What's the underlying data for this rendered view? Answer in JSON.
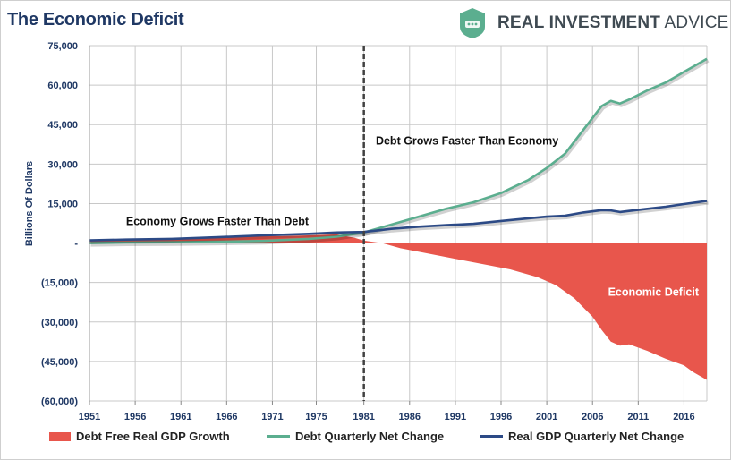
{
  "header": {
    "title": "The Economic Deficit",
    "brand_bold": "REAL INVESTMENT",
    "brand_light": "ADVICE"
  },
  "colors": {
    "title": "#1f3864",
    "axis_text": "#1f3864",
    "deficit_fill": "#e8564c",
    "debt_line": "#5bae8f",
    "gdp_line": "#2c4a86",
    "grid": "#c8c8c8",
    "divider": "#404040",
    "logo": "#5bae8f"
  },
  "chart_data": {
    "type": "line",
    "title": "The Economic Deficit",
    "xlabel": "",
    "ylabel": "Billions Of Dollars",
    "xlim": [
      1951,
      2018.5
    ],
    "ylim": [
      -60000,
      75000
    ],
    "x_ticks": [
      "1951",
      "1956",
      "1961",
      "1966",
      "1971",
      "1975",
      "1981",
      "1986",
      "1991",
      "1996",
      "2001",
      "2006",
      "2011",
      "2016"
    ],
    "x_tick_values": [
      1951,
      1956,
      1961,
      1966,
      1971,
      1975.8,
      1981,
      1986,
      1991,
      1996,
      2001,
      2006,
      2011,
      2016
    ],
    "y_ticks": [
      "75,000",
      "60,000",
      "45,000",
      "30,000",
      "15,000",
      "-",
      "(15,000)",
      "(30,000)",
      "(45,000)",
      "(60,000)"
    ],
    "y_tick_values": [
      75000,
      60000,
      45000,
      30000,
      15000,
      0,
      -15000,
      -30000,
      -45000,
      -60000
    ],
    "grid": true,
    "legend_position": "bottom",
    "divider_x": 1981,
    "annotations": [
      {
        "text": "Economy Grows Faster Than Debt",
        "x": 1955,
        "y": 6800
      },
      {
        "text": "Debt Grows Faster Than Economy",
        "x": 1982.3,
        "y": 37400
      },
      {
        "text": "Economic Deficit",
        "x": 2007.7,
        "y": -20000
      }
    ],
    "series": [
      {
        "name": "Debt Free Real GDP Growth",
        "kind": "area",
        "x": [
          1951,
          1955,
          1960,
          1965,
          1968,
          1972,
          1975,
          1978,
          1980,
          1981,
          1983,
          1985,
          1988,
          1991,
          1994,
          1997,
          2000,
          2002,
          2004,
          2006,
          2007,
          2008,
          2009,
          2010,
          2012,
          2014,
          2016,
          2017,
          2018.5
        ],
        "values": [
          1300,
          1500,
          1700,
          2300,
          2800,
          2600,
          2900,
          3300,
          2000,
          900,
          0,
          -2000,
          -4000,
          -6000,
          -8000,
          -10000,
          -13000,
          -16000,
          -21000,
          -28000,
          -33000,
          -37500,
          -39000,
          -38500,
          -41000,
          -44000,
          -46500,
          -49000,
          -52000
        ]
      },
      {
        "name": "Debt Quarterly Net Change",
        "kind": "line",
        "x": [
          1951,
          1955,
          1960,
          1965,
          1970,
          1975,
          1978,
          1981,
          1984,
          1987,
          1990,
          1993,
          1996,
          1999,
          2001,
          2003,
          2005,
          2007,
          2008,
          2009,
          2010,
          2012,
          2014,
          2016,
          2018.5
        ],
        "values": [
          0,
          200,
          300,
          500,
          800,
          1600,
          2400,
          4000,
          7000,
          10000,
          13000,
          15500,
          19000,
          24000,
          28500,
          34000,
          43000,
          52000,
          54000,
          53000,
          54500,
          58000,
          61000,
          65000,
          70000
        ]
      },
      {
        "name": "Real GDP Quarterly Net Change",
        "kind": "line",
        "x": [
          1951,
          1955,
          1960,
          1965,
          1970,
          1975,
          1978,
          1981,
          1984,
          1987,
          1990,
          1993,
          1996,
          1999,
          2001,
          2003,
          2005,
          2007,
          2008,
          2009,
          2010,
          2012,
          2014,
          2016,
          2018.5
        ],
        "values": [
          1000,
          1300,
          1600,
          2200,
          2900,
          3500,
          4000,
          4200,
          5400,
          6200,
          6800,
          7300,
          8400,
          9400,
          10000,
          10400,
          11600,
          12500,
          12400,
          11800,
          12200,
          13000,
          13800,
          14800,
          16000
        ]
      }
    ]
  }
}
